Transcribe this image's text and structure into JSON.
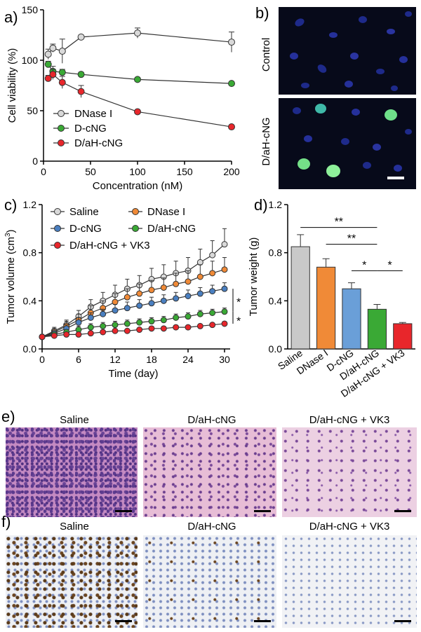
{
  "panel_labels": {
    "a": "a)",
    "b": "b)",
    "c": "c)",
    "d": "d)",
    "e": "e)",
    "f": "f)"
  },
  "chart_data": [
    {
      "panel": "a",
      "type": "line",
      "xlabel": "Concentration (nM)",
      "ylabel": "Cell viability (%)",
      "xlim": [
        0,
        200
      ],
      "ylim": [
        0,
        150
      ],
      "xticks": [
        0,
        50,
        100,
        150,
        200
      ],
      "yticks": [
        0,
        50,
        100,
        150
      ],
      "legend_position": "bottom-left",
      "series": [
        {
          "name": "DNase I",
          "color": "#d9d9d9",
          "x": [
            5,
            10,
            20,
            40,
            100,
            200
          ],
          "y": [
            106,
            112,
            109,
            123,
            127,
            118
          ],
          "err": [
            5,
            4,
            12,
            2,
            5,
            10
          ]
        },
        {
          "name": "D-cNG",
          "color": "#3aa935",
          "x": [
            5,
            10,
            20,
            40,
            100,
            200
          ],
          "y": [
            96,
            89,
            88,
            86,
            81,
            77
          ],
          "err": [
            3,
            5,
            3,
            2,
            2,
            1
          ]
        },
        {
          "name": "D/aH-cNG",
          "color": "#e8262b",
          "x": [
            5,
            10,
            20,
            40,
            100,
            200
          ],
          "y": [
            82,
            86,
            78,
            69,
            49,
            34
          ],
          "err": [
            3,
            5,
            6,
            6,
            1,
            1
          ]
        }
      ]
    },
    {
      "panel": "c",
      "type": "line",
      "xlabel": "Time (day)",
      "ylabel_main": "Tumor volume (cm",
      "ylabel_sup": "3",
      "ylabel_end": ")",
      "xlim": [
        0,
        30
      ],
      "ylim": [
        0,
        1.2
      ],
      "xticks": [
        0,
        6,
        12,
        18,
        24,
        30
      ],
      "yticks": [
        0.0,
        0.4,
        0.8,
        1.2
      ],
      "ytick_labels": [
        "0.0",
        "0.4",
        "0.8",
        "1.2"
      ],
      "legend_position": "top-left",
      "significance": [
        "*",
        "*"
      ],
      "x": [
        0,
        2,
        4,
        6,
        8,
        10,
        12,
        14,
        16,
        18,
        20,
        22,
        24,
        26,
        28,
        30
      ],
      "series": [
        {
          "name": "Saline",
          "color": "#d9d9d9",
          "y": [
            0.1,
            0.15,
            0.2,
            0.27,
            0.35,
            0.4,
            0.45,
            0.5,
            0.53,
            0.58,
            0.6,
            0.63,
            0.65,
            0.72,
            0.78,
            0.87
          ],
          "err": [
            0.02,
            0.03,
            0.04,
            0.05,
            0.06,
            0.07,
            0.08,
            0.08,
            0.08,
            0.09,
            0.1,
            0.1,
            0.11,
            0.11,
            0.12,
            0.13
          ]
        },
        {
          "name": "DNase I",
          "color": "#f08a37",
          "y": [
            0.1,
            0.14,
            0.19,
            0.24,
            0.3,
            0.34,
            0.39,
            0.43,
            0.46,
            0.49,
            0.51,
            0.54,
            0.56,
            0.6,
            0.63,
            0.66
          ],
          "err": [
            0.02,
            0.03,
            0.04,
            0.05,
            0.06,
            0.06,
            0.07,
            0.07,
            0.08,
            0.08,
            0.08,
            0.09,
            0.09,
            0.1,
            0.1,
            0.1
          ]
        },
        {
          "name": "D-cNG",
          "color": "#4a7fc0",
          "y": [
            0.1,
            0.13,
            0.17,
            0.22,
            0.26,
            0.29,
            0.32,
            0.34,
            0.36,
            0.38,
            0.4,
            0.42,
            0.44,
            0.46,
            0.48,
            0.5
          ],
          "err": [
            0.02,
            0.02,
            0.03,
            0.04,
            0.04,
            0.04,
            0.05,
            0.05,
            0.05,
            0.05,
            0.05,
            0.05,
            0.05,
            0.05,
            0.05,
            0.05
          ]
        },
        {
          "name": "D/aH-cNG",
          "color": "#3aa935",
          "y": [
            0.1,
            0.12,
            0.14,
            0.16,
            0.18,
            0.19,
            0.2,
            0.21,
            0.22,
            0.23,
            0.24,
            0.26,
            0.27,
            0.29,
            0.3,
            0.31
          ],
          "err": [
            0.02,
            0.02,
            0.02,
            0.03,
            0.03,
            0.03,
            0.03,
            0.03,
            0.03,
            0.03,
            0.03,
            0.03,
            0.03,
            0.03,
            0.03,
            0.03
          ]
        },
        {
          "name": "D/aH-cNG + VK3",
          "color": "#e8262b",
          "y": [
            0.1,
            0.11,
            0.12,
            0.12,
            0.13,
            0.14,
            0.15,
            0.15,
            0.16,
            0.17,
            0.17,
            0.18,
            0.18,
            0.19,
            0.2,
            0.21
          ],
          "err": [
            0.01,
            0.01,
            0.01,
            0.01,
            0.01,
            0.01,
            0.01,
            0.01,
            0.01,
            0.01,
            0.01,
            0.01,
            0.01,
            0.01,
            0.01,
            0.01
          ]
        }
      ]
    },
    {
      "panel": "d",
      "type": "bar",
      "ylabel": "Tumor weight (g)",
      "ylim": [
        0,
        1.2
      ],
      "yticks": [
        0.0,
        0.4,
        0.8,
        1.2
      ],
      "ytick_labels": [
        "0.0",
        "0.4",
        "0.8",
        "1.2"
      ],
      "categories": [
        "Saline",
        "DNase I",
        "D-cNG",
        "D/aH-cNG",
        "D/aH-cNG + VK3"
      ],
      "values": [
        0.85,
        0.68,
        0.5,
        0.33,
        0.21
      ],
      "err": [
        0.1,
        0.07,
        0.05,
        0.04,
        0.01
      ],
      "colors": [
        "#c9c9c9",
        "#f08a37",
        "#6a9fd8",
        "#3aa935",
        "#e8262b"
      ],
      "significance": [
        {
          "label": "**",
          "from": 0,
          "to": 3
        },
        {
          "label": "**",
          "from": 1,
          "to": 3
        },
        {
          "label": "*",
          "from": 2,
          "to": 3
        },
        {
          "label": "*",
          "from": 3,
          "to": 4
        }
      ]
    }
  ],
  "panel_b": {
    "control_label": "Control",
    "treated_label": "D/aH-cNG"
  },
  "panel_e": {
    "titles": [
      "Saline",
      "D/aH-cNG",
      "D/aH-cNG + VK3"
    ]
  },
  "panel_f": {
    "titles": [
      "Saline",
      "D/aH-cNG",
      "D/aH-cNG + VK3"
    ]
  }
}
